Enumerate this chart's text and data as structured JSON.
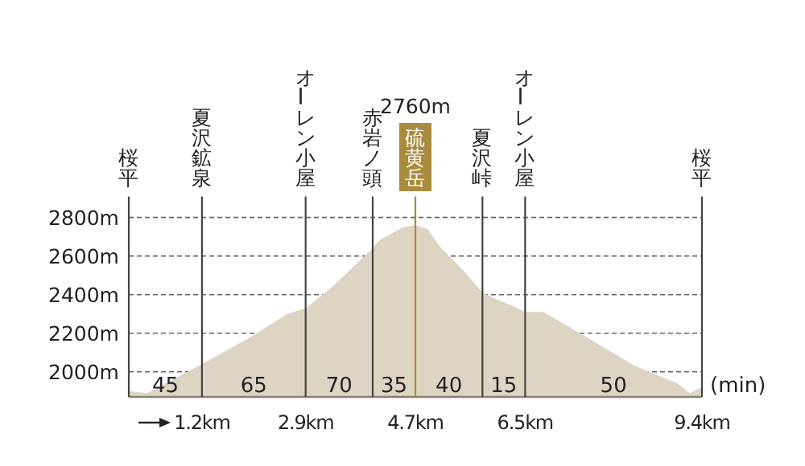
{
  "chart_data": {
    "type": "area",
    "x": [
      0,
      0.3,
      1.2,
      2.0,
      2.6,
      2.9,
      3.3,
      4.0,
      4.1,
      4.5,
      4.7,
      4.9,
      5.1,
      5.5,
      5.8,
      6.0,
      6.3,
      6.5,
      6.8,
      7.4,
      8.3,
      9.0,
      9.2,
      9.4
    ],
    "values": [
      1900,
      1890,
      2040,
      2180,
      2300,
      2330,
      2430,
      2640,
      2680,
      2750,
      2760,
      2740,
      2650,
      2520,
      2410,
      2380,
      2340,
      2310,
      2310,
      2200,
      2030,
      1940,
      1890,
      1920
    ],
    "color": "#ddd4c3",
    "xlim": [
      0,
      9.4
    ],
    "ylim": [
      1870,
      2900
    ],
    "xticks": [
      {
        "value": 1.2,
        "label": "1.2km"
      },
      {
        "value": 2.9,
        "label": "2.9km"
      },
      {
        "value": 4.7,
        "label": "4.7km"
      },
      {
        "value": 6.5,
        "label": "6.5km"
      },
      {
        "value": 9.4,
        "label": "9.4km"
      }
    ],
    "yticks": [
      {
        "value": 2000,
        "label": "2000m"
      },
      {
        "value": 2200,
        "label": "2200m"
      },
      {
        "value": 2400,
        "label": "2400m"
      },
      {
        "value": 2600,
        "label": "2600m"
      },
      {
        "value": 2800,
        "label": "2800m"
      }
    ],
    "grid": "y",
    "ref_lines": [
      {
        "axis": "x",
        "value": 0,
        "label": "桜平"
      },
      {
        "axis": "x",
        "value": 1.2,
        "label": "夏沢鉱泉"
      },
      {
        "axis": "x",
        "value": 2.9,
        "label": "オーレン小屋"
      },
      {
        "axis": "x",
        "value": 4.0,
        "label": "赤岩ノ頭"
      },
      {
        "axis": "x",
        "value": 4.7,
        "label": "硫黄岳",
        "color": "#a88b3d"
      },
      {
        "axis": "x",
        "value": 5.8,
        "label": "夏沢峠"
      },
      {
        "axis": "x",
        "value": 6.5,
        "label": "オーレン小屋"
      },
      {
        "axis": "x",
        "value": 9.4,
        "label": "桜平"
      }
    ],
    "annotations": [
      "45",
      "65",
      "70",
      "35",
      "40",
      "15",
      "50",
      "(min)",
      "2760m"
    ]
  }
}
